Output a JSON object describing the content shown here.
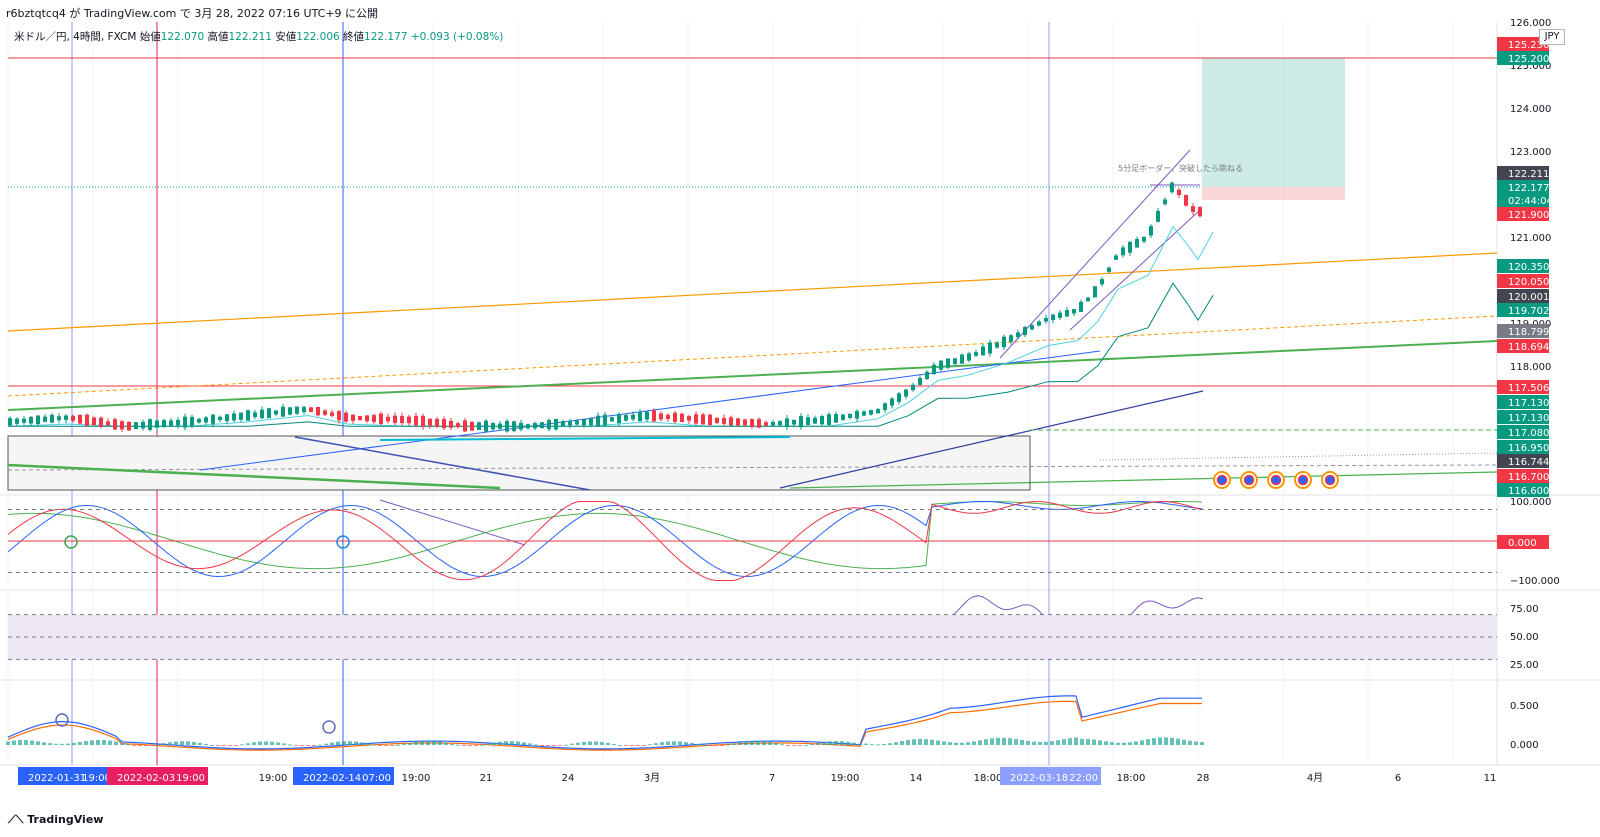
{
  "header": {
    "publish_info": "r6bztqtcq4 が TradingView.com で 3月 28, 2022 07:16 UTC+9 に公開"
  },
  "symbol_line": {
    "symbol": "米ドル／円, 4時間, FXCM",
    "open_label": "始値",
    "open": "122.070",
    "high_label": "高値",
    "high": "122.211",
    "low_label": "安値",
    "low": "122.006",
    "close_label": "終値",
    "close": "122.177",
    "change": "+0.093 (+0.08%)"
  },
  "currency_badge": "JPY",
  "footer": {
    "brand": "TradingView"
  },
  "annotation": "5分足ボーダー、突破したら跳ねる",
  "colors": {
    "up": "#089981",
    "down": "#f23645",
    "orange": "#ff9800",
    "green_line": "#4caf50",
    "blue": "#2962ff",
    "purple": "#7e57c2",
    "pink": "#e91e63",
    "rsi_band": "#ede7f6"
  },
  "chart_data": {
    "type": "line",
    "title": "米ドル／円, 4時間, FXCM",
    "price_axis": {
      "ylim": [
        116.6,
        126.0
      ],
      "ticks": [
        "126.000",
        "125.000",
        "124.000",
        "123.000",
        "121.000",
        "119.000",
        "118.000"
      ]
    },
    "price_labels": [
      {
        "value": "125.236",
        "color": "#f23645"
      },
      {
        "value": "125.200",
        "color": "#089981"
      },
      {
        "value": "122.211",
        "color": "#434651"
      },
      {
        "value": "122.177",
        "color": "#089981"
      },
      {
        "value": "02:44:04",
        "color": "#089981"
      },
      {
        "value": "121.900",
        "color": "#f23645"
      },
      {
        "value": "120.350",
        "color": "#089981"
      },
      {
        "value": "120.050",
        "color": "#f23645"
      },
      {
        "value": "120.001",
        "color": "#434651"
      },
      {
        "value": "119.702",
        "color": "#089981"
      },
      {
        "value": "118.799",
        "color": "#787b86"
      },
      {
        "value": "118.694",
        "color": "#f23645"
      },
      {
        "value": "117.506",
        "color": "#f23645"
      },
      {
        "value": "117.130",
        "color": "#089981"
      },
      {
        "value": "117.130",
        "color": "#089981"
      },
      {
        "value": "117.080",
        "color": "#089981"
      },
      {
        "value": "116.950",
        "color": "#089981"
      },
      {
        "value": "116.744",
        "color": "#434651"
      },
      {
        "value": "116.700",
        "color": "#f23645"
      },
      {
        "value": "116.600",
        "color": "#089981"
      }
    ],
    "price_path": [
      {
        "x": 0,
        "y": 116.7
      },
      {
        "x": 60,
        "y": 116.8
      },
      {
        "x": 120,
        "y": 116.6
      },
      {
        "x": 180,
        "y": 116.7
      },
      {
        "x": 240,
        "y": 116.85
      },
      {
        "x": 300,
        "y": 117.0
      },
      {
        "x": 340,
        "y": 116.8
      },
      {
        "x": 400,
        "y": 116.75
      },
      {
        "x": 460,
        "y": 116.6
      },
      {
        "x": 520,
        "y": 116.6
      },
      {
        "x": 580,
        "y": 116.7
      },
      {
        "x": 640,
        "y": 116.85
      },
      {
        "x": 700,
        "y": 116.75
      },
      {
        "x": 760,
        "y": 116.65
      },
      {
        "x": 820,
        "y": 116.75
      },
      {
        "x": 870,
        "y": 116.95
      },
      {
        "x": 900,
        "y": 117.4
      },
      {
        "x": 930,
        "y": 118.0
      },
      {
        "x": 960,
        "y": 118.2
      },
      {
        "x": 1000,
        "y": 118.6
      },
      {
        "x": 1040,
        "y": 119.1
      },
      {
        "x": 1070,
        "y": 119.3
      },
      {
        "x": 1090,
        "y": 119.8
      },
      {
        "x": 1110,
        "y": 120.6
      },
      {
        "x": 1140,
        "y": 121.0
      },
      {
        "x": 1165,
        "y": 122.2
      },
      {
        "x": 1180,
        "y": 121.8
      },
      {
        "x": 1190,
        "y": 121.5
      },
      {
        "x": 1205,
        "y": 122.18
      }
    ],
    "oscillator_1": {
      "ticks": [
        "100.000",
        "0.000",
        "−100.000"
      ],
      "current": "0.000"
    },
    "rsi": {
      "ticks": [
        "75.00",
        "50.00",
        "25.00"
      ]
    },
    "macd": {
      "ticks": [
        "0.500",
        "0.000"
      ]
    },
    "time_axis": {
      "labels": [
        "19:00",
        "19:00",
        "19:00",
        "21",
        "24",
        "3月",
        "7",
        "19:00",
        "14",
        "18:00",
        "18:00",
        "28",
        "4月",
        "6",
        "11"
      ],
      "highlighted": [
        "2022-01-31",
        "2022-02-03",
        "2022-02-14",
        "2022-03-18"
      ],
      "highlighted_times": [
        "19:00",
        "19:00",
        "07:00",
        "22:00"
      ]
    }
  }
}
